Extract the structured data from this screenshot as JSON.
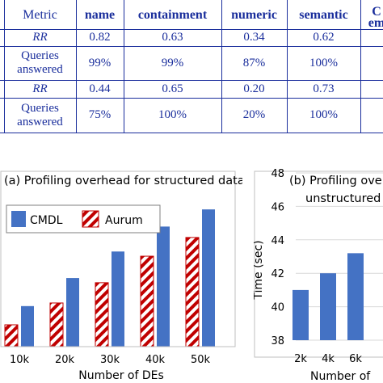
{
  "table": {
    "headers": [
      "Metric",
      "name",
      "containment",
      "numeric",
      "semantic",
      "C",
      "em"
    ],
    "rows": [
      {
        "metric": "RR",
        "values": [
          "0.82",
          "0.63",
          "0.34",
          "0.62"
        ]
      },
      {
        "metric_line1": "Queries",
        "metric_line2": "answered",
        "values": [
          "99%",
          "99%",
          "87%",
          "100%"
        ]
      },
      {
        "metric": "RR",
        "values": [
          "0.44",
          "0.65",
          "0.20",
          "0.73"
        ]
      },
      {
        "metric_line1": "Queries",
        "metric_line2": "answered",
        "values": [
          "75%",
          "100%",
          "20%",
          "100%"
        ]
      }
    ]
  },
  "colors": {
    "table_text": "#1a2e9c",
    "cmdl": "#4472c4",
    "aurum_stripe": "#c00000"
  },
  "chart_data": [
    {
      "type": "bar",
      "title": "(a) Profiling overhead for structured data",
      "xlabel": "Number of DEs",
      "ylabel": "",
      "categories": [
        "10k",
        "20k",
        "30k",
        "40k",
        "50k"
      ],
      "series": [
        {
          "name": "CMDL",
          "values": [
            26,
            44,
            61,
            77,
            88
          ]
        },
        {
          "name": "Aurum",
          "values": [
            14,
            28,
            41,
            58,
            70
          ]
        }
      ],
      "ylim": [
        0,
        100
      ],
      "grid": false,
      "legend": "top-left"
    },
    {
      "type": "bar",
      "title": "(b) Profiling overl",
      "subtitle": "unstructured",
      "xlabel": "Number of",
      "ylabel": "Time (sec)",
      "categories": [
        "2k",
        "4k",
        "6k"
      ],
      "series": [
        {
          "values": [
            41.0,
            42.0,
            43.2
          ]
        }
      ],
      "yticks": [
        "38",
        "40",
        "42",
        "44",
        "46",
        "48"
      ],
      "ylim": [
        38,
        48
      ],
      "grid": true
    }
  ]
}
